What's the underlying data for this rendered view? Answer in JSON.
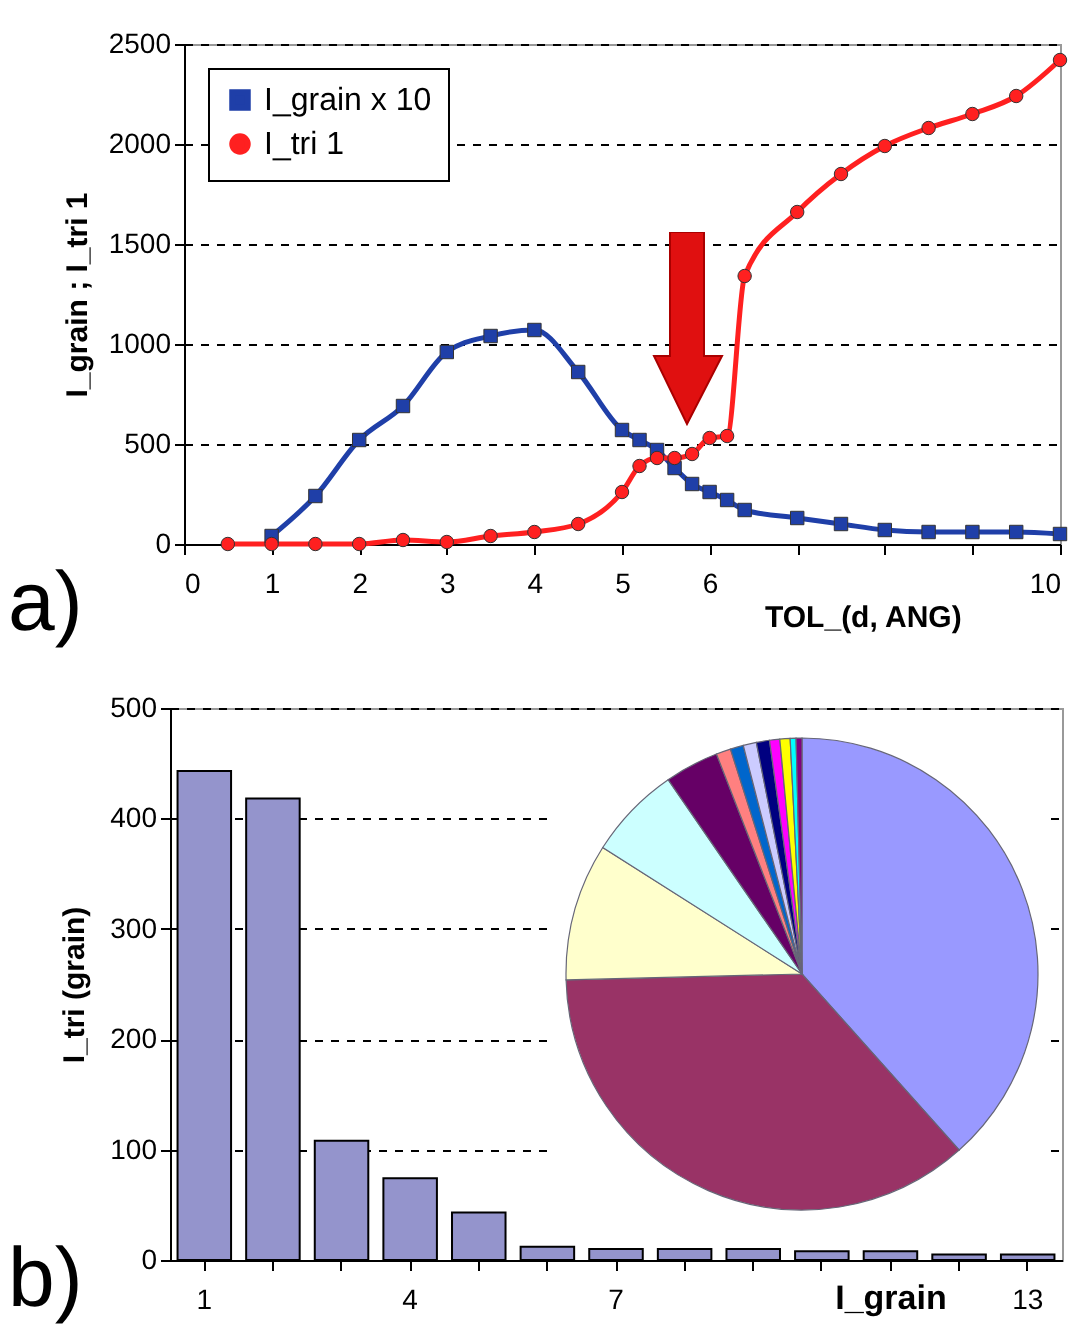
{
  "chart_data": [
    {
      "type": "line",
      "xlabel": "TOL_(d, ANG)",
      "ylabel": "I_grain ; I_tri 1",
      "xlim": [
        0,
        10
      ],
      "ylim": [
        0,
        2500
      ],
      "xticks": [
        0,
        1,
        2,
        3,
        4,
        5,
        6,
        {
          "value": 7,
          "label": null
        },
        {
          "value": 8,
          "label": null
        },
        {
          "value": 9,
          "label": null
        },
        10
      ],
      "yticks": [
        0,
        500,
        1000,
        1500,
        2000,
        2500
      ],
      "grid": "y",
      "legend": "top left",
      "annotations": [
        "a)"
      ],
      "series": [
        {
          "name": "I_grain x 10",
          "color": "#1f3fa8",
          "marker": "square",
          "x": [
            1,
            1.5,
            2,
            2.5,
            3,
            3.5,
            4,
            4.5,
            5,
            5.2,
            5.4,
            5.6,
            5.8,
            6,
            6.2,
            6.4,
            7,
            7.5,
            8,
            8.5,
            9,
            9.5,
            10
          ],
          "values": [
            40,
            240,
            520,
            690,
            960,
            1040,
            1070,
            860,
            570,
            520,
            470,
            380,
            300,
            260,
            220,
            170,
            130,
            100,
            70,
            60,
            60,
            60,
            50
          ]
        },
        {
          "name": "I_tri 1",
          "color": "#ff2020",
          "marker": "circle",
          "x": [
            0.5,
            1,
            1.5,
            2,
            2.5,
            3,
            3.5,
            4,
            4.5,
            5,
            5.2,
            5.4,
            5.6,
            5.8,
            6,
            6.2,
            6.4,
            7,
            7.5,
            8,
            8.5,
            9,
            9.5,
            10
          ],
          "values": [
            0,
            0,
            0,
            0,
            20,
            10,
            40,
            60,
            100,
            260,
            390,
            430,
            430,
            450,
            530,
            540,
            1340,
            1660,
            1850,
            1990,
            2080,
            2150,
            2240,
            2420
          ]
        }
      ]
    },
    {
      "type": "bar",
      "xlabel": "I_grain",
      "ylabel": "I_tri (grain)",
      "ylim": [
        0,
        500
      ],
      "yticks": [
        0,
        100,
        200,
        300,
        400,
        500
      ],
      "grid": "y",
      "annotations": [
        "b)"
      ],
      "categories": [
        "1",
        null,
        null,
        "4",
        null,
        null,
        "7",
        null,
        null,
        null,
        null,
        null,
        "13"
      ],
      "series": [
        {
          "color": "#9494cc",
          "values": [
            443,
            418,
            108,
            74,
            43,
            12,
            10,
            10,
            10,
            8,
            8,
            5,
            5
          ]
        }
      ]
    },
    {
      "type": "pie",
      "categories": [
        null,
        null,
        null,
        null,
        null,
        null,
        null,
        null,
        null,
        null,
        null,
        null,
        null
      ],
      "values": [
        38.4,
        36.2,
        9.4,
        6.4,
        3.7,
        1.0,
        0.9,
        0.9,
        0.9,
        0.7,
        0.7,
        0.4,
        0.4
      ],
      "colors": [
        "#9999ff",
        "#993366",
        "#ffffcc",
        "#ccffff",
        "#660066",
        "#ff8080",
        "#0066cc",
        "#ccccff",
        "#000080",
        "#ff00ff",
        "#ffff00",
        "#00ffff",
        "#800080"
      ]
    }
  ]
}
